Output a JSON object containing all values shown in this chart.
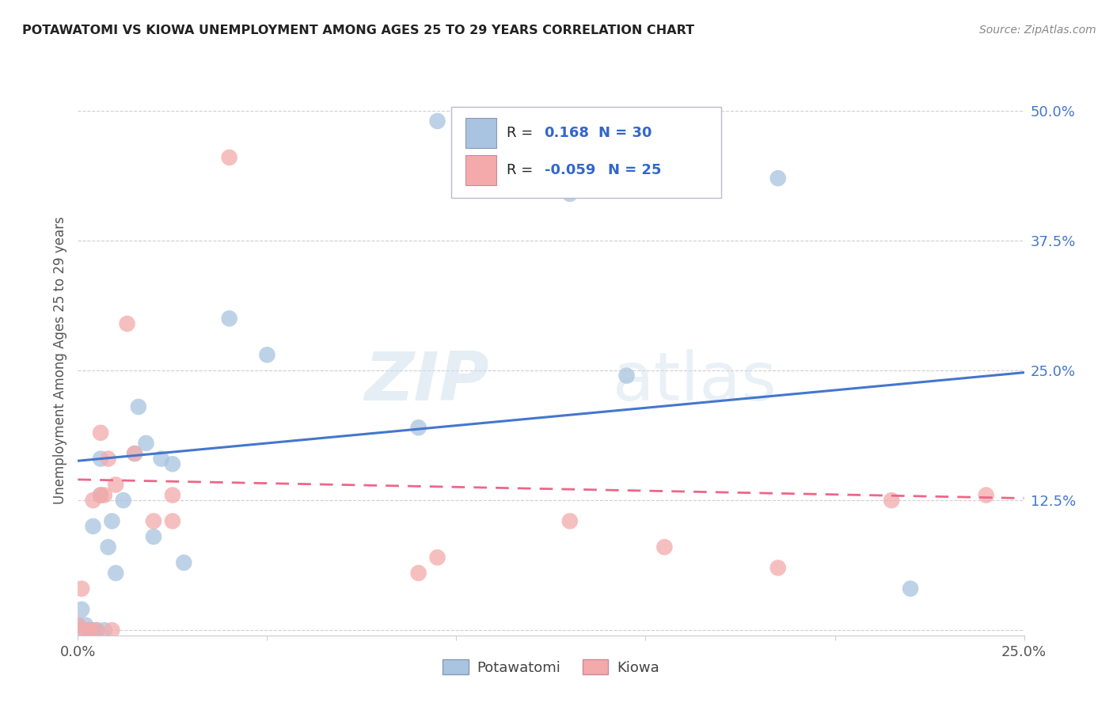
{
  "title": "POTAWATOMI VS KIOWA UNEMPLOYMENT AMONG AGES 25 TO 29 YEARS CORRELATION CHART",
  "source": "Source: ZipAtlas.com",
  "ylabel": "Unemployment Among Ages 25 to 29 years",
  "xlim": [
    0.0,
    0.25
  ],
  "ylim": [
    -0.005,
    0.525
  ],
  "xticks": [
    0.0,
    0.05,
    0.1,
    0.15,
    0.2,
    0.25
  ],
  "xticklabels": [
    "0.0%",
    "",
    "",
    "",
    "",
    "25.0%"
  ],
  "yticks_right": [
    0.0,
    0.125,
    0.25,
    0.375,
    0.5
  ],
  "yticklabels_right": [
    "",
    "12.5%",
    "25.0%",
    "37.5%",
    "50.0%"
  ],
  "legend_blue_r": "0.168",
  "legend_blue_n": "30",
  "legend_pink_r": "-0.059",
  "legend_pink_n": "25",
  "blue_color": "#A8C4E0",
  "pink_color": "#F4AAAA",
  "line_blue_color": "#4477CC",
  "line_pink_color": "#EE6688",
  "watermark_zip": "ZIP",
  "watermark_atlas": "atlas",
  "blue_points_x": [
    0.0,
    0.001,
    0.001,
    0.002,
    0.003,
    0.004,
    0.004,
    0.005,
    0.006,
    0.006,
    0.007,
    0.008,
    0.009,
    0.01,
    0.012,
    0.015,
    0.016,
    0.018,
    0.02,
    0.022,
    0.025,
    0.028,
    0.04,
    0.05,
    0.09,
    0.095,
    0.13,
    0.145,
    0.185,
    0.22
  ],
  "blue_points_y": [
    0.005,
    0.0,
    0.02,
    0.005,
    0.0,
    0.0,
    0.1,
    0.0,
    0.13,
    0.165,
    0.0,
    0.08,
    0.105,
    0.055,
    0.125,
    0.17,
    0.215,
    0.18,
    0.09,
    0.165,
    0.16,
    0.065,
    0.3,
    0.265,
    0.195,
    0.49,
    0.42,
    0.245,
    0.435,
    0.04
  ],
  "pink_points_x": [
    0.0,
    0.001,
    0.002,
    0.003,
    0.004,
    0.005,
    0.006,
    0.006,
    0.007,
    0.008,
    0.009,
    0.01,
    0.013,
    0.015,
    0.02,
    0.025,
    0.025,
    0.04,
    0.09,
    0.095,
    0.13,
    0.155,
    0.185,
    0.215,
    0.24
  ],
  "pink_points_y": [
    0.005,
    0.04,
    0.0,
    0.0,
    0.125,
    0.0,
    0.13,
    0.19,
    0.13,
    0.165,
    0.0,
    0.14,
    0.295,
    0.17,
    0.105,
    0.105,
    0.13,
    0.455,
    0.055,
    0.07,
    0.105,
    0.08,
    0.06,
    0.125,
    0.13
  ],
  "blue_line_x": [
    0.0,
    0.25
  ],
  "blue_line_y": [
    0.163,
    0.248
  ],
  "pink_line_x": [
    0.0,
    0.25
  ],
  "pink_line_y": [
    0.145,
    0.127
  ],
  "background_color": "#FFFFFF",
  "grid_color": "#BBBBBB"
}
